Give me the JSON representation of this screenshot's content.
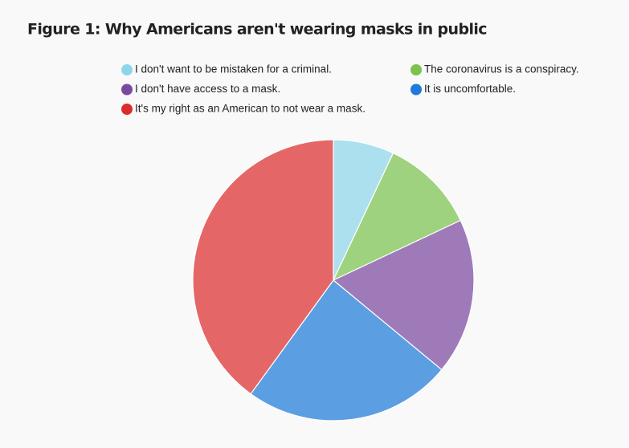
{
  "chart_data": {
    "type": "pie",
    "title": "Figure 1: Why Americans aren't wearing masks in public",
    "categories": [
      "I don't want to be mistaken for a criminal.",
      "The coronavirus is a conspiracy.",
      "I don't have access to a mask.",
      "It is uncomfortable.",
      "It's my right as an American to not wear a mask."
    ],
    "values": [
      7,
      11,
      18,
      24,
      40
    ],
    "colors": [
      "#8dd6ea",
      "#7cc24f",
      "#7a4a9e",
      "#1f7ad8",
      "#dd2c2c"
    ]
  }
}
